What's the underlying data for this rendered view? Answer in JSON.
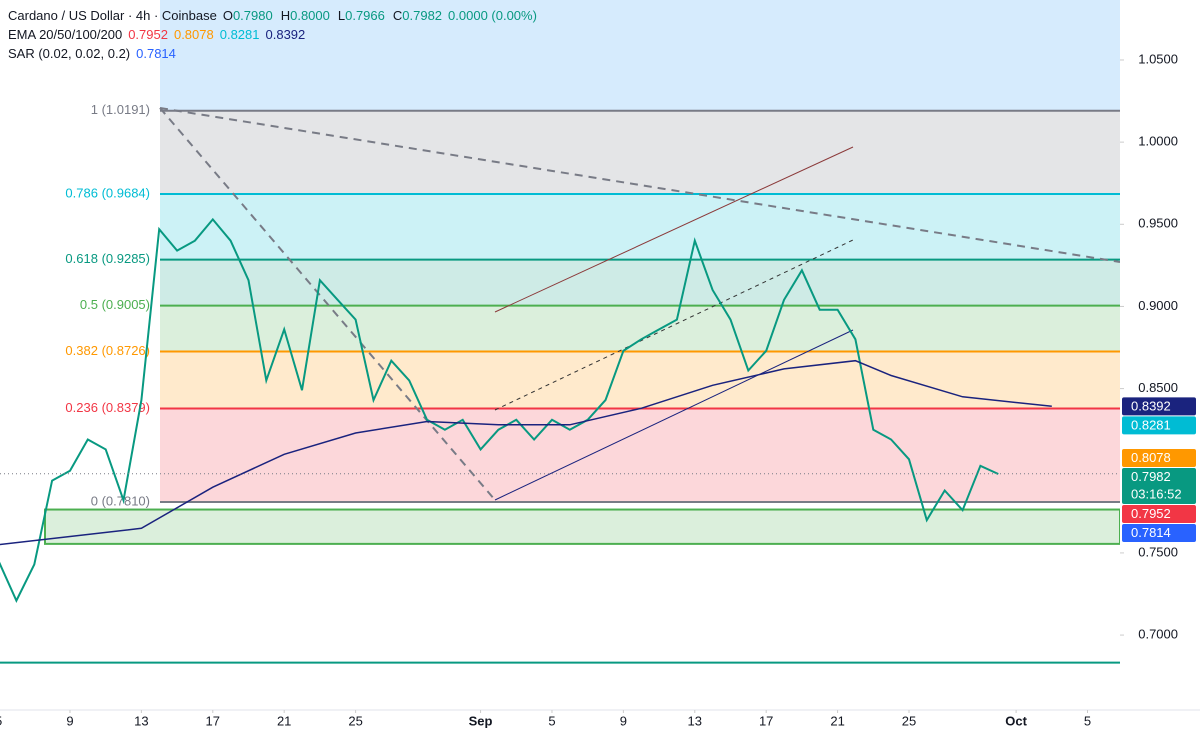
{
  "chart_data": {
    "type": "line",
    "header": {
      "symbol": "Cardano / US Dollar · 4h · Coinbase",
      "ohlc": [
        {
          "k": "O",
          "v": "0.7980"
        },
        {
          "k": "H",
          "v": "0.8000"
        },
        {
          "k": "L",
          "v": "0.7966"
        },
        {
          "k": "C",
          "v": "0.7982"
        }
      ],
      "change": "0.0000 (0.00%)",
      "ema_label": "EMA 20/50/100/200",
      "ema_values": [
        {
          "text": "0.7952",
          "color": "#f23645"
        },
        {
          "text": "0.8078",
          "color": "#ff9800"
        },
        {
          "text": "0.8281",
          "color": "#00bcd4"
        },
        {
          "text": "0.8392",
          "color": "#1a237e"
        }
      ],
      "sar_label": "SAR (0.02, 0.02, 0.2)",
      "sar_value": {
        "text": "0.7814",
        "color": "#2962ff"
      }
    },
    "x": [
      0,
      1,
      2,
      3,
      4,
      5,
      6,
      7,
      8,
      9,
      10,
      11,
      12,
      13,
      14,
      15,
      16,
      17,
      18,
      19,
      20,
      21,
      22,
      23,
      24,
      25,
      26,
      27,
      28,
      29,
      30,
      31,
      32,
      33,
      34,
      35,
      36,
      37,
      38,
      39,
      40,
      41,
      42,
      43,
      44,
      45,
      46,
      47,
      48,
      49,
      50,
      51,
      52,
      53,
      54,
      55,
      56
    ],
    "series": [
      {
        "color": "#089981",
        "values": [
          0.745,
          0.721,
          0.743,
          0.794,
          0.8,
          0.819,
          0.813,
          0.782,
          0.843,
          0.947,
          0.934,
          0.94,
          0.953,
          0.94,
          0.916,
          0.855,
          0.886,
          0.849,
          0.916,
          0.904,
          0.892,
          0.843,
          0.867,
          0.855,
          0.831,
          0.825,
          0.831,
          0.813,
          0.825,
          0.831,
          0.819,
          0.831,
          0.825,
          0.831,
          0.843,
          0.873,
          0.88,
          0.886,
          0.892,
          0.94,
          0.91,
          0.892,
          0.861,
          0.873,
          0.904,
          0.922,
          0.898,
          0.898,
          0.88,
          0.825,
          0.819,
          0.807,
          0.77,
          0.788,
          0.776,
          0.803,
          0.798
        ]
      },
      {
        "color": "#1a237e",
        "x": [
          0,
          4,
          8,
          12,
          16,
          20,
          24,
          28,
          32,
          36,
          40,
          44,
          48,
          50,
          54,
          59
        ],
        "values": [
          0.755,
          0.76,
          0.765,
          0.79,
          0.81,
          0.823,
          0.83,
          0.828,
          0.828,
          0.838,
          0.852,
          0.862,
          0.867,
          0.858,
          0.845,
          0.8392
        ]
      }
    ],
    "xlim": [
      0.08,
      62.82
    ],
    "xticks": [
      {
        "value": 0,
        "label": "5"
      },
      {
        "value": 4,
        "label": "9"
      },
      {
        "value": 8,
        "label": "13"
      },
      {
        "value": 12,
        "label": "17"
      },
      {
        "value": 16,
        "label": "21"
      },
      {
        "value": 20,
        "label": "25"
      },
      {
        "value": 27,
        "label": "Sep"
      },
      {
        "value": 31,
        "label": "5"
      },
      {
        "value": 35,
        "label": "9"
      },
      {
        "value": 39,
        "label": "13"
      },
      {
        "value": 43,
        "label": "17"
      },
      {
        "value": 47,
        "label": "21"
      },
      {
        "value": 51,
        "label": "25"
      },
      {
        "value": 57,
        "label": "Oct"
      },
      {
        "value": 61,
        "label": "5"
      }
    ],
    "ylim": [
      0.6544,
      1.0865
    ],
    "yticks": [
      {
        "value": 0.7,
        "label": "0.7000"
      },
      {
        "value": 0.75,
        "label": "0.7500"
      },
      {
        "value": 0.85,
        "label": "0.8500"
      },
      {
        "value": 0.9,
        "label": "0.9000"
      },
      {
        "value": 0.95,
        "label": "0.9500"
      },
      {
        "value": 1,
        "label": "1.0000"
      },
      {
        "value": 1.05,
        "label": "1.0500"
      }
    ],
    "fib_levels": [
      {
        "value": 1.0191,
        "label": "1 (1.0191)",
        "color": "#787b86"
      },
      {
        "value": 0.9684,
        "label": "0.786 (0.9684)",
        "color": "#00bcd4"
      },
      {
        "value": 0.9285,
        "label": "0.618 (0.9285)",
        "color": "#089981"
      },
      {
        "value": 0.9005,
        "label": "0.5 (0.9005)",
        "color": "#4caf50"
      },
      {
        "value": 0.8726,
        "label": "0.382 (0.8726)",
        "color": "#ff9800"
      },
      {
        "value": 0.8379,
        "label": "0.236 (0.8379)",
        "color": "#f23645"
      },
      {
        "value": 0.781,
        "label": "0 (0.7810)",
        "color": "#787b86"
      }
    ],
    "support_zone": [
      0.7555,
      0.7764
    ],
    "horizontal_line": {
      "value": 0.6832,
      "color": "#089981"
    },
    "price_tags": [
      {
        "value": 0.8392,
        "color": "#1a237e"
      },
      {
        "value": 0.8281,
        "color": "#00bcd4"
      },
      {
        "value": 0.8078,
        "color": "#ff9800"
      },
      {
        "value": 0.7982,
        "color": "#089981",
        "countdown": "03:16:52"
      },
      {
        "value": 0.7952,
        "color": "#f23645"
      },
      {
        "value": 0.7814,
        "color": "#2962ff"
      }
    ]
  }
}
